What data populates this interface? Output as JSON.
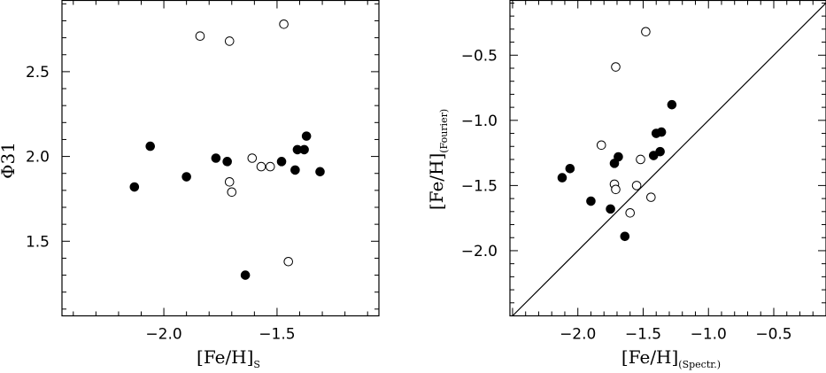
{
  "chart_data": [
    {
      "type": "scatter",
      "title": "",
      "xlabel": {
        "main": "[Fe/H]",
        "sub": "S"
      },
      "ylabel": {
        "main": "Φ31",
        "sub": ""
      },
      "xlim": [
        -2.45,
        -1.05
      ],
      "ylim": [
        1.06,
        2.92
      ],
      "xticks_labeled": [
        "−2.0",
        "−1.5"
      ],
      "xtick_values": [
        -2.0,
        -1.5
      ],
      "yticks_labeled": [
        "1.5",
        "2.0",
        "2.5"
      ],
      "ytick_values": [
        1.5,
        2.0,
        2.5
      ],
      "grid": false,
      "series": [
        {
          "marker": "filled-circle",
          "x": [
            -2.13,
            -2.06,
            -1.9,
            -1.77,
            -1.72,
            -1.64,
            -1.48,
            -1.42,
            -1.41,
            -1.38,
            -1.37,
            -1.31
          ],
          "y": [
            1.82,
            2.06,
            1.88,
            1.99,
            1.97,
            1.3,
            1.97,
            1.92,
            2.04,
            2.04,
            2.12,
            1.91
          ]
        },
        {
          "marker": "open-circle",
          "x": [
            -1.84,
            -1.71,
            -1.47,
            -1.71,
            -1.7,
            -1.61,
            -1.57,
            -1.53,
            -1.45
          ],
          "y": [
            2.71,
            2.68,
            2.78,
            1.85,
            1.79,
            1.99,
            1.94,
            1.94,
            1.38
          ]
        }
      ]
    },
    {
      "type": "scatter",
      "title": "",
      "xlabel": {
        "main": "[Fe/H]",
        "sub": "(Spectr.)"
      },
      "ylabel": {
        "main": "[Fe/H]",
        "sub": "(Fourier)"
      },
      "xlim": [
        -2.52,
        -0.1
      ],
      "ylim": [
        -2.5,
        -0.08
      ],
      "xticks_labeled": [
        "−2.0",
        "−1.5",
        "−1.0",
        "−0.5"
      ],
      "xtick_values": [
        -2.0,
        -1.5,
        -1.0,
        -0.5
      ],
      "yticks_labeled": [
        "−2.0",
        "−1.5",
        "−1.0",
        "−0.5"
      ],
      "ytick_values": [
        -2.0,
        -1.5,
        -1.0,
        -0.5
      ],
      "grid": false,
      "reference_line": "y = x",
      "series": [
        {
          "marker": "filled-circle",
          "x": [
            -2.12,
            -2.06,
            -1.9,
            -1.75,
            -1.72,
            -1.69,
            -1.64,
            -1.42,
            -1.4,
            -1.37,
            -1.36,
            -1.28
          ],
          "y": [
            -1.44,
            -1.37,
            -1.62,
            -1.68,
            -1.33,
            -1.28,
            -1.89,
            -1.27,
            -1.1,
            -1.24,
            -1.09,
            -0.88
          ]
        },
        {
          "marker": "open-circle",
          "x": [
            -1.82,
            -1.71,
            -1.52,
            -1.48,
            -1.72,
            -1.71,
            -1.55,
            -1.44,
            -1.6
          ],
          "y": [
            -1.19,
            -0.59,
            -1.3,
            -0.32,
            -1.49,
            -1.53,
            -1.5,
            -1.59,
            -1.71
          ]
        }
      ]
    }
  ]
}
